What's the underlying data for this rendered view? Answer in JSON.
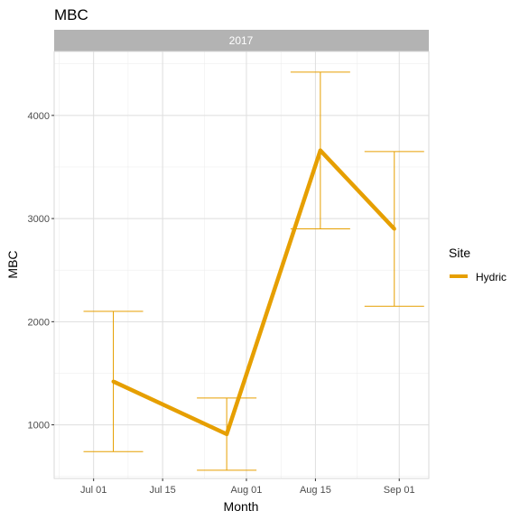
{
  "chart_data": {
    "type": "line",
    "title": "MBC",
    "facet_label": "2017",
    "xlabel": "Month",
    "ylabel": "MBC",
    "x_ticks": [
      "Jul 01",
      "Jul 15",
      "Aug 01",
      "Aug 15",
      "Sep 01"
    ],
    "x_tick_dates": [
      "2017-07-01",
      "2017-07-15",
      "2017-08-01",
      "2017-08-15",
      "2017-09-01"
    ],
    "xlim": [
      "2017-06-23",
      "2017-09-07"
    ],
    "y_ticks": [
      1000,
      2000,
      3000,
      4000
    ],
    "ylim": [
      480,
      4620
    ],
    "grid": true,
    "legend": {
      "title": "Site",
      "placement": "right"
    },
    "series": [
      {
        "name": "Hydric",
        "color": "#E69F00",
        "points": [
          {
            "x": "2017-07-05",
            "y": 1420,
            "ymin": 740,
            "ymax": 2100
          },
          {
            "x": "2017-07-28",
            "y": 910,
            "ymin": 560,
            "ymax": 1260
          },
          {
            "x": "2017-08-16",
            "y": 3660,
            "ymin": 2900,
            "ymax": 4420
          },
          {
            "x": "2017-08-31",
            "y": 2900,
            "ymin": 2150,
            "ymax": 3650
          }
        ]
      }
    ]
  }
}
